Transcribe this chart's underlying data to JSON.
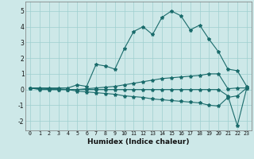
{
  "background_color": "#cde8e8",
  "grid_color": "#9ecfcf",
  "line_color": "#1a6b6b",
  "x_labels": [
    "0",
    "1",
    "2",
    "3",
    "4",
    "5",
    "6",
    "7",
    "8",
    "9",
    "10",
    "11",
    "12",
    "13",
    "14",
    "15",
    "16",
    "17",
    "18",
    "19",
    "20",
    "21",
    "22",
    "23"
  ],
  "xlabel": "Humidex (Indice chaleur)",
  "ylim": [
    -2.6,
    5.6
  ],
  "yticks": [
    -2,
    -1,
    0,
    1,
    2,
    3,
    4,
    5
  ],
  "series1": [
    0.1,
    0.1,
    0.1,
    0.1,
    0.1,
    0.3,
    0.2,
    1.6,
    1.5,
    1.3,
    2.6,
    3.7,
    4.0,
    3.5,
    4.6,
    5.0,
    4.7,
    3.8,
    4.1,
    3.2,
    2.4,
    1.3,
    1.2,
    0.2
  ],
  "series2": [
    0.1,
    0.1,
    0.05,
    0.05,
    0.0,
    0.0,
    0.05,
    0.1,
    0.15,
    0.2,
    0.3,
    0.4,
    0.5,
    0.6,
    0.7,
    0.75,
    0.8,
    0.85,
    0.9,
    1.0,
    1.0,
    0.05,
    0.1,
    0.1
  ],
  "series3": [
    0.1,
    0.0,
    0.0,
    0.0,
    0.0,
    -0.1,
    -0.15,
    -0.2,
    -0.25,
    -0.3,
    -0.4,
    -0.45,
    -0.5,
    -0.6,
    -0.65,
    -0.7,
    -0.75,
    -0.8,
    -0.85,
    -1.0,
    -1.05,
    -0.5,
    -0.4,
    0.1
  ],
  "series4": [
    0.1,
    0.05,
    0.0,
    0.0,
    0.0,
    0.0,
    0.0,
    0.0,
    0.0,
    0.0,
    0.0,
    0.0,
    0.0,
    0.0,
    0.0,
    0.0,
    0.0,
    0.0,
    0.0,
    0.0,
    0.0,
    -0.4,
    -2.3,
    0.1
  ]
}
